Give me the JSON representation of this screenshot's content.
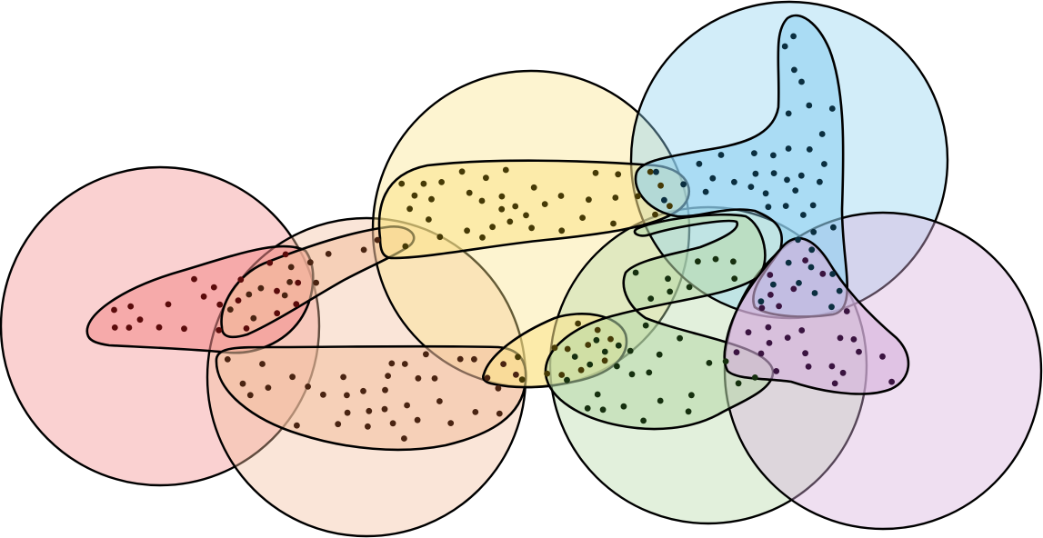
{
  "diagram": {
    "kind": "overlapping-circles-and-point-clusters",
    "circle_count": 6,
    "cluster_count": 8,
    "colors": {
      "red": "#f28b8b",
      "peach": "#f2bf9e",
      "yellow": "#fbe38a",
      "blue": "#8fd1f0",
      "green": "#b7d9a8",
      "purple": "#d6b0dc",
      "red_dot": "#5a0b0b",
      "peach_dot": "#4a2412",
      "yellow_dot": "#463a06",
      "blue_dot": "#0b2f40",
      "green_dot": "#16300f",
      "purple_dot": "#3a1440"
    },
    "text_labels": []
  }
}
